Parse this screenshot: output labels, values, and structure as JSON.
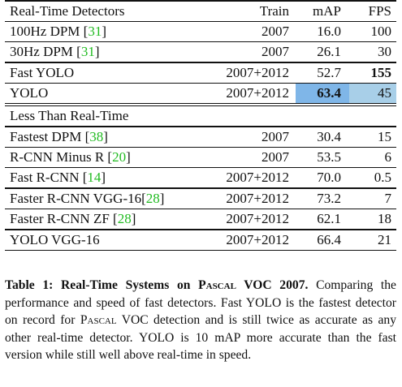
{
  "table": {
    "header": {
      "name": "Real-Time Detectors",
      "train": "Train",
      "map": "mAP",
      "fps": "FPS"
    },
    "realtime_rows": [
      {
        "name": "100Hz DPM [",
        "cite": "31",
        "close": "]",
        "train": "2007",
        "map": "16.0",
        "fps": "100"
      },
      {
        "name": "30Hz DPM [",
        "cite": "31",
        "close": "]",
        "train": "2007",
        "map": "26.1",
        "fps": "30"
      },
      {
        "name": "Fast YOLO",
        "cite": "",
        "close": "",
        "train": "2007+2012",
        "map": "52.7",
        "fps": "155"
      },
      {
        "name": "YOLO",
        "cite": "",
        "close": "",
        "train": "2007+2012",
        "map": "63.4",
        "fps": "45"
      }
    ],
    "section2_title": "Less Than Real-Time",
    "slow_rows": [
      {
        "name": "Fastest DPM [",
        "cite": "38",
        "close": "]",
        "train": "2007",
        "map": "30.4",
        "fps": "15"
      },
      {
        "name": "R-CNN Minus R [",
        "cite": "20",
        "close": "]",
        "train": "2007",
        "map": "53.5",
        "fps": "6"
      },
      {
        "name": "Fast R-CNN [",
        "cite": "14",
        "close": "]",
        "train": "2007+2012",
        "map": "70.0",
        "fps": "0.5"
      },
      {
        "name": "Faster R-CNN VGG-16[",
        "cite": "28",
        "close": "]",
        "train": "2007+2012",
        "map": "73.2",
        "fps": "7"
      },
      {
        "name": "Faster R-CNN ZF [",
        "cite": "28",
        "close": "]",
        "train": "2007+2012",
        "map": "62.1",
        "fps": "18"
      },
      {
        "name": "YOLO VGG-16",
        "cite": "",
        "close": "",
        "train": "2007+2012",
        "map": "66.4",
        "fps": "21"
      }
    ],
    "highlight_colors": {
      "map": "#7fb6e8",
      "fps": "#a8cfe8"
    },
    "citation_color": "#22bb22"
  },
  "caption": {
    "label": "Table 1:",
    "title_pre": "Real-Time Systems on ",
    "title_sc": "Pascal",
    "title_post": " VOC 2007.",
    "body_1": "Comparing the performance and speed of fast detectors. Fast YOLO is the fastest detector on record for ",
    "body_sc": "Pascal",
    "body_2": " VOC detection and is still twice as accurate as any other real-time detector. YOLO is 10 mAP more accurate than the fast version while still well above real-time in speed."
  }
}
